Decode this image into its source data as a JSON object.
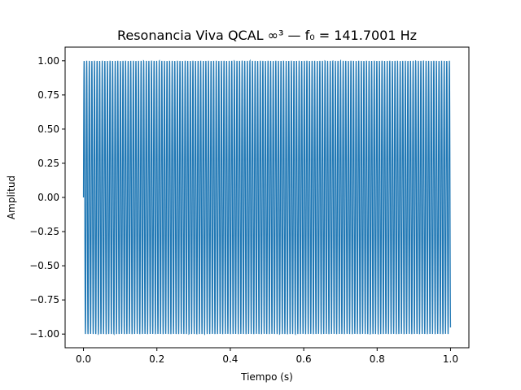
{
  "chart_data": {
    "type": "line",
    "title": "Resonancia Viva QCAL ∞³ — f₀ = 141.7001 Hz",
    "xlabel": "Tiempo (s)",
    "ylabel": "Amplitud",
    "xlim": [
      -0.05,
      1.05
    ],
    "ylim": [
      -1.1,
      1.1
    ],
    "xticks": [
      0.0,
      0.2,
      0.4,
      0.6,
      0.8,
      1.0
    ],
    "xtick_labels": [
      "0.0",
      "0.2",
      "0.4",
      "0.6",
      "0.8",
      "1.0"
    ],
    "yticks": [
      -1.0,
      -0.75,
      -0.5,
      -0.25,
      0.0,
      0.25,
      0.5,
      0.75,
      1.0
    ],
    "ytick_labels": [
      "−1.00",
      "−0.75",
      "−0.50",
      "−0.25",
      "0.00",
      "0.25",
      "0.50",
      "0.75",
      "1.00"
    ],
    "grid": false,
    "series": [
      {
        "color": "#1f77b4",
        "function": "sin(2π·141.7001·t)",
        "x_range": [
          0,
          1
        ],
        "frequency_hz": 141.7001,
        "amplitude": 1.0
      }
    ]
  }
}
